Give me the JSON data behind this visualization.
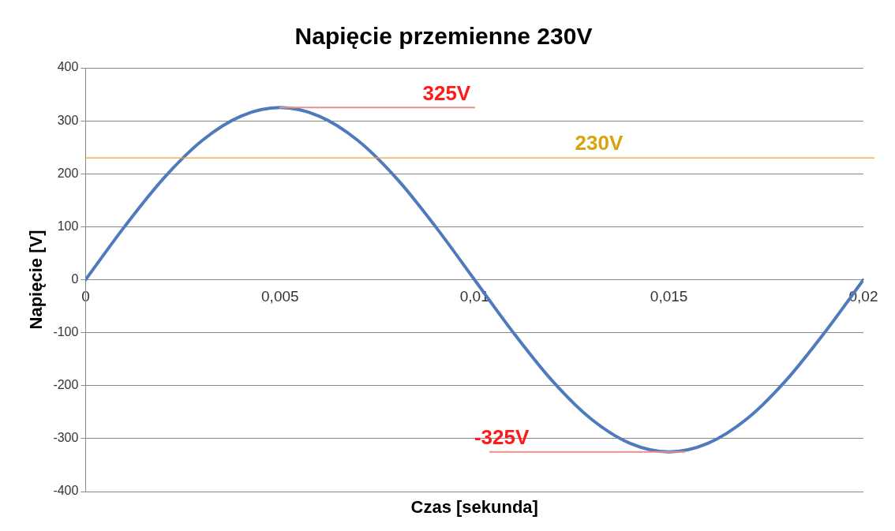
{
  "chart_data": {
    "type": "line",
    "title": "Napięcie przemienne 230V",
    "xlabel": "Czas [sekunda]",
    "ylabel": "Napięcie [V]",
    "x": [
      0,
      0.001,
      0.002,
      0.003,
      0.004,
      0.005,
      0.006,
      0.007,
      0.008,
      0.009,
      0.01,
      0.011,
      0.012,
      0.013,
      0.014,
      0.015,
      0.016,
      0.017,
      0.018,
      0.019,
      0.02
    ],
    "series": [
      {
        "color": "#4f7bbd",
        "values": [
          0,
          100,
          191,
          263,
          309,
          325,
          309,
          263,
          191,
          100,
          0,
          -100,
          -191,
          -263,
          -309,
          -325,
          -309,
          -263,
          -191,
          -100,
          0
        ]
      },
      {
        "color": "#e89090",
        "x": [
          0.005,
          0.01
        ],
        "values": [
          325,
          325
        ]
      },
      {
        "color": "#e89090",
        "x": [
          0.0104,
          0.0154
        ],
        "values": [
          -325,
          -325
        ]
      }
    ],
    "xlim": [
      0,
      0.02
    ],
    "xticks": [
      0,
      {
        "value": 0.005,
        "label": "0,005"
      },
      {
        "value": 0.01,
        "label": "0,01"
      },
      {
        "value": 0.015,
        "label": "0,015"
      },
      {
        "value": 0.02,
        "label": "0,02"
      }
    ],
    "ylim": [
      -400,
      400
    ],
    "yticks": [
      -400,
      -300,
      -200,
      -100,
      0,
      100,
      200,
      300,
      400
    ],
    "grid": "y",
    "legend": false,
    "marker": "none",
    "line_style": "solid",
    "ref_lines": [
      {
        "axis": "y",
        "value": 230,
        "label": "230V",
        "color": "#f0a030"
      }
    ],
    "annotations": [
      {
        "text": "325V",
        "x": 0.01,
        "y": 325
      },
      {
        "text": "-325V",
        "x": 0.0104,
        "y": -325
      }
    ]
  }
}
